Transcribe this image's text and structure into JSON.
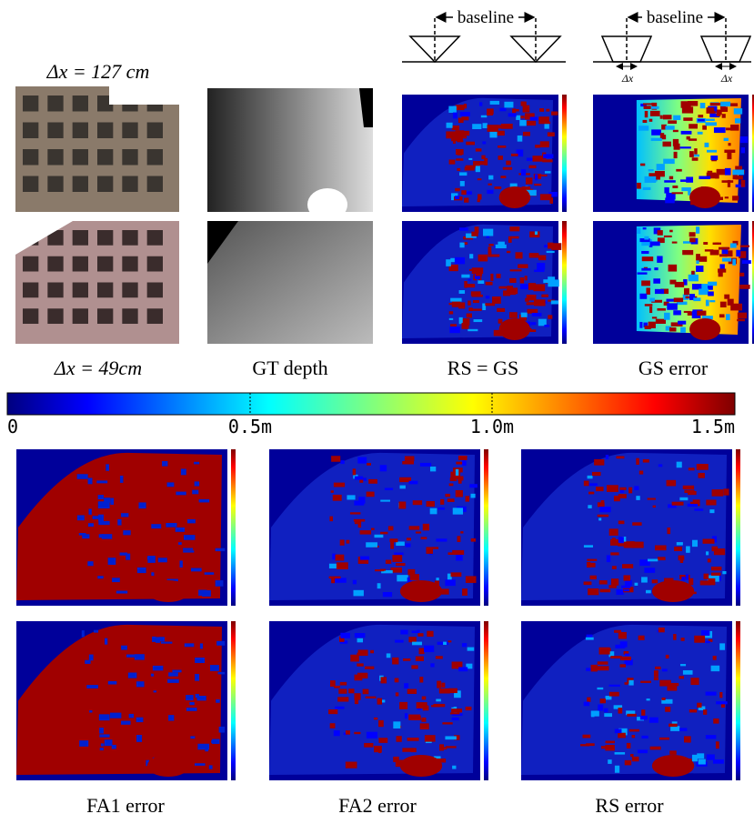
{
  "header": {
    "dx_top": "Δx = 127 cm",
    "baseline_left": "baseline",
    "baseline_right": "baseline",
    "dx_left": "Δx",
    "dx_right": "Δx"
  },
  "top_captions": [
    "Δx = 49cm",
    "GT depth",
    "RS = GS",
    "GS error"
  ],
  "colorbar": {
    "labels": [
      "0",
      "0.5m",
      "1.0m",
      "1.5m"
    ]
  },
  "bottom_captions": [
    "FA1 error",
    "FA2 error",
    "RS error"
  ]
}
